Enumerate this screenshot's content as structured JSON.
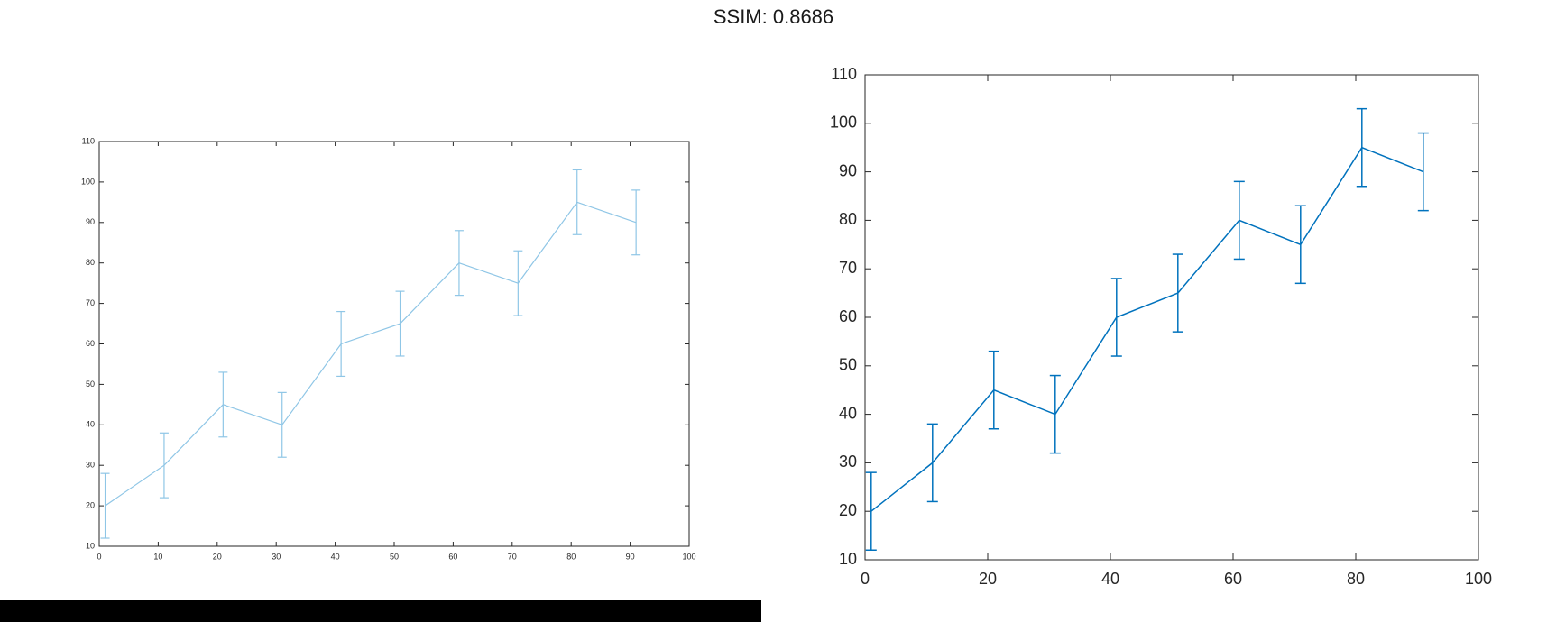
{
  "figure": {
    "title": "SSIM: 0.8686"
  },
  "chart_data": [
    {
      "type": "line",
      "panel": "left",
      "x": [
        1,
        11,
        21,
        31,
        41,
        51,
        61,
        71,
        81,
        91
      ],
      "y": [
        20,
        30,
        45,
        40,
        60,
        65,
        80,
        75,
        95,
        90
      ],
      "error": [
        8,
        8,
        8,
        8,
        8,
        8,
        8,
        8,
        8,
        8
      ],
      "xlim": [
        0,
        100
      ],
      "ylim": [
        10,
        110
      ],
      "xticks": [
        0,
        10,
        20,
        30,
        40,
        50,
        60,
        70,
        80,
        90,
        100
      ],
      "yticks": [
        10,
        20,
        30,
        40,
        50,
        60,
        70,
        80,
        90,
        100,
        110
      ],
      "title": "",
      "xlabel": "",
      "ylabel": "",
      "color": "#8fc6e6",
      "grid": false
    },
    {
      "type": "line",
      "panel": "right",
      "x": [
        1,
        11,
        21,
        31,
        41,
        51,
        61,
        71,
        81,
        91
      ],
      "y": [
        20,
        30,
        45,
        40,
        60,
        65,
        80,
        75,
        95,
        90
      ],
      "error": [
        8,
        8,
        8,
        8,
        8,
        8,
        8,
        8,
        8,
        8
      ],
      "xlim": [
        0,
        100
      ],
      "ylim": [
        10,
        110
      ],
      "xticks": [
        0,
        20,
        40,
        60,
        80,
        100
      ],
      "yticks": [
        10,
        20,
        30,
        40,
        50,
        60,
        70,
        80,
        90,
        100,
        110
      ],
      "title": "",
      "xlabel": "",
      "ylabel": "",
      "color": "#0072bd",
      "grid": false
    }
  ]
}
